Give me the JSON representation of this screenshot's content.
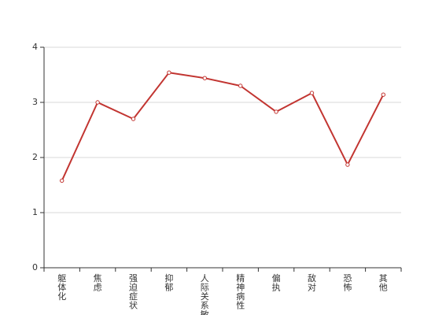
{
  "chart_data": {
    "type": "line",
    "title": "",
    "xlabel": "",
    "ylabel": "",
    "categories": [
      "躯体化",
      "焦虑",
      "强迫症状",
      "抑郁",
      "人际关系敏感",
      "精神病性",
      "偏执",
      "敌对",
      "恐怖",
      "其他"
    ],
    "series": [
      {
        "values": [
          1.58,
          3.0,
          2.7,
          3.54,
          3.44,
          3.3,
          2.83,
          3.17,
          1.87,
          3.14
        ]
      }
    ],
    "ylim": [
      0,
      4
    ],
    "yticks": [
      "0",
      "1",
      "2",
      "3",
      "4"
    ],
    "grid": true,
    "legend": "none"
  },
  "colors": {
    "series": "#c23531",
    "axis": "#333333",
    "grid": "#d9d9d9"
  }
}
